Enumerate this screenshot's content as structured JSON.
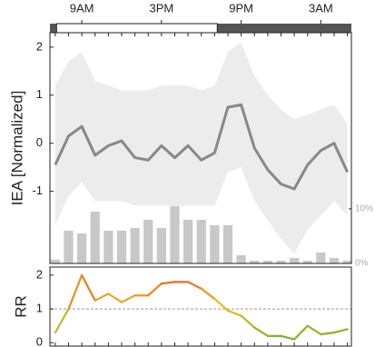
{
  "chart_data": [
    {
      "type": "line",
      "ylabel": "IEA [Normalized]",
      "x": [
        7,
        8,
        9,
        10,
        11,
        12,
        13,
        14,
        15,
        16,
        17,
        18,
        19,
        20,
        21,
        22,
        23,
        24,
        25,
        26,
        27,
        28,
        29
      ],
      "xlim": [
        6.6,
        29.3
      ],
      "xticks": [
        {
          "value": 9,
          "label": "9AM"
        },
        {
          "value": 15,
          "label": "3PM"
        },
        {
          "value": 21,
          "label": "9PM"
        },
        {
          "value": 27,
          "label": "3AM"
        }
      ],
      "xminorticks": [
        7,
        8,
        9,
        10,
        11,
        12,
        13,
        14,
        15,
        16,
        17,
        18,
        19,
        20,
        21,
        22,
        23,
        24,
        25,
        26,
        27,
        28,
        29
      ],
      "light_period": [
        7.1,
        19.2
      ],
      "ylim": [
        -2.5,
        2.3
      ],
      "yticks": [
        -1,
        0,
        1,
        2
      ],
      "y2lim": [
        0,
        42.3
      ],
      "y2ticks": [
        {
          "value": 0,
          "label": "0%"
        },
        {
          "value": 10,
          "label": "10%"
        }
      ],
      "band": {
        "color": "#ececec",
        "upper": [
          1.2,
          1.7,
          1.9,
          1.3,
          1.2,
          1.1,
          1.1,
          1.1,
          1.2,
          1.2,
          1.2,
          1.1,
          1.2,
          1.9,
          2.1,
          1.4,
          1.0,
          0.7,
          0.5,
          0.6,
          0.7,
          0.8,
          0.4
        ],
        "lower": [
          -1.7,
          -1.1,
          -0.8,
          -1.2,
          -1.2,
          -1.2,
          -1.3,
          -1.3,
          -1.3,
          -1.3,
          -1.3,
          -1.3,
          -1.3,
          -0.6,
          -0.5,
          -1.2,
          -1.6,
          -2.0,
          -2.3,
          -1.8,
          -1.5,
          -1.2,
          -1.5
        ]
      },
      "series": [
        {
          "kind": "bar",
          "axis": "y2",
          "color": "#c8c8c8",
          "values": [
            0.7,
            6,
            5.5,
            9.5,
            6,
            6,
            6.5,
            8,
            6.5,
            10.5,
            8,
            8,
            7,
            7,
            1.5,
            0.5,
            0.5,
            0.5,
            1,
            0.5,
            2,
            1,
            0.5
          ]
        },
        {
          "kind": "line",
          "color": "#888888",
          "values": [
            -0.45,
            0.15,
            0.35,
            -0.25,
            -0.05,
            0.05,
            -0.3,
            -0.35,
            -0.05,
            -0.3,
            -0.05,
            -0.35,
            -0.2,
            0.75,
            0.8,
            -0.1,
            -0.55,
            -0.85,
            -0.95,
            -0.45,
            -0.15,
            0.0,
            -0.6
          ]
        }
      ]
    },
    {
      "type": "line",
      "ylabel": "RR",
      "x": [
        7,
        8,
        9,
        10,
        11,
        12,
        13,
        14,
        15,
        16,
        17,
        18,
        19,
        20,
        21,
        22,
        23,
        24,
        25,
        26,
        27,
        28,
        29
      ],
      "xlim": [
        6.6,
        29.3
      ],
      "xminorticks": [
        7,
        8,
        9,
        10,
        11,
        12,
        13,
        14,
        15,
        16,
        17,
        18,
        19,
        20,
        21,
        22,
        23,
        24,
        25,
        26,
        27,
        28,
        29
      ],
      "ylim": [
        -0.1,
        2.24
      ],
      "yticks": [
        0,
        1,
        2
      ],
      "hline": 1,
      "colors": [
        "#5cb030",
        "#f0c020",
        "#e63a20"
      ],
      "series": [
        {
          "kind": "gradient-line",
          "values": [
            0.3,
            1.0,
            2.0,
            1.25,
            1.45,
            1.2,
            1.4,
            1.4,
            1.75,
            1.8,
            1.8,
            1.6,
            1.3,
            0.95,
            0.8,
            0.45,
            0.2,
            0.2,
            0.1,
            0.5,
            0.25,
            0.3,
            0.4
          ]
        }
      ]
    }
  ]
}
